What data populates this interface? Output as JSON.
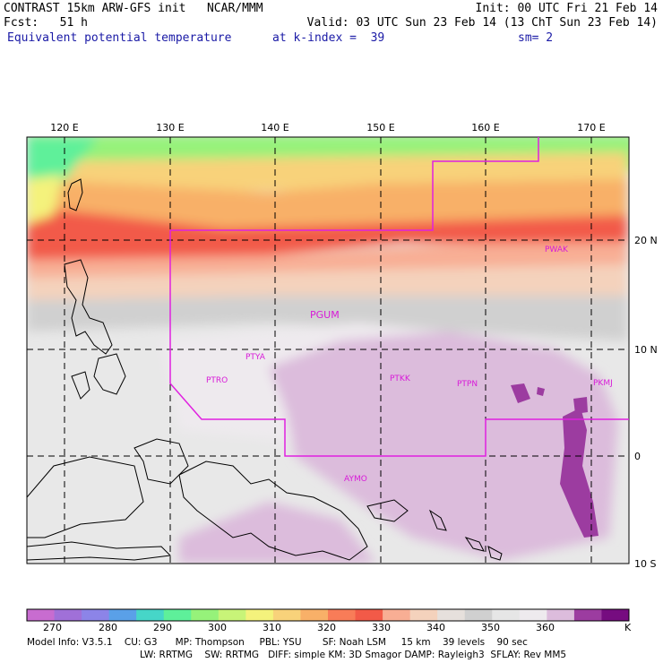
{
  "header": {
    "left_line1": "CONTRAST 15km ARW-GFS init   NCAR/MMM",
    "left_line2": "Fcst:   51 h",
    "left_line3": "Equivalent potential temperature",
    "right_line1": "Init: 00 UTC Fri 21 Feb 14",
    "right_line2": "Valid: 03 UTC Sun 23 Feb 14 (13 ChT Sun 23 Feb 14)",
    "right_line3a": "at k-index =  39",
    "right_line3b": "sm= 2"
  },
  "map": {
    "lon_labels": [
      "120 E",
      "130 E",
      "140 E",
      "150 E",
      "160 E",
      "170 E"
    ],
    "lat_labels": [
      "20 N",
      "10 N",
      "0",
      "10 S"
    ],
    "stations": [
      {
        "id": "PWAK",
        "label": "PWAK"
      },
      {
        "id": "PGUM",
        "label": "PGUM"
      },
      {
        "id": "PTYA",
        "label": "PTYA"
      },
      {
        "id": "PTRO",
        "label": "PTRO"
      },
      {
        "id": "PTKK",
        "label": "PTKK"
      },
      {
        "id": "PTPN",
        "label": "PTPN"
      },
      {
        "id": "PKMJ",
        "label": "PKMJ"
      },
      {
        "id": "AYMO",
        "label": "AYMO"
      }
    ],
    "boundary_color": "#e020e0"
  },
  "colorbar": {
    "colors": [
      "#c86cd0",
      "#a070d8",
      "#8c84e8",
      "#5aa0e8",
      "#46d6c8",
      "#5ef09a",
      "#96f27a",
      "#c8f478",
      "#f4f27c",
      "#f8d27a",
      "#f8b068",
      "#f87c58",
      "#f25a48",
      "#f8ae94",
      "#f4d2bc",
      "#e6e0dc",
      "#d0d0d0",
      "#e6e6e6",
      "#eeeaee",
      "#dcbcdc",
      "#9c3ca0",
      "#760c80"
    ],
    "tick_labels": [
      "270",
      "280",
      "290",
      "300",
      "310",
      "320",
      "330",
      "340",
      "350",
      "360"
    ],
    "unit": "K"
  },
  "footer": {
    "line1": "Model Info: V3.5.1    CU: G3      MP: Thompson     PBL: YSU       SF: Noah LSM     15 km    39 levels    90 sec",
    "line2": "LW: RRTMG    SW: RRTMG   DIFF: simple KM: 3D Smagor DAMP: Rayleigh3  SFLAY: Rev MM5"
  }
}
